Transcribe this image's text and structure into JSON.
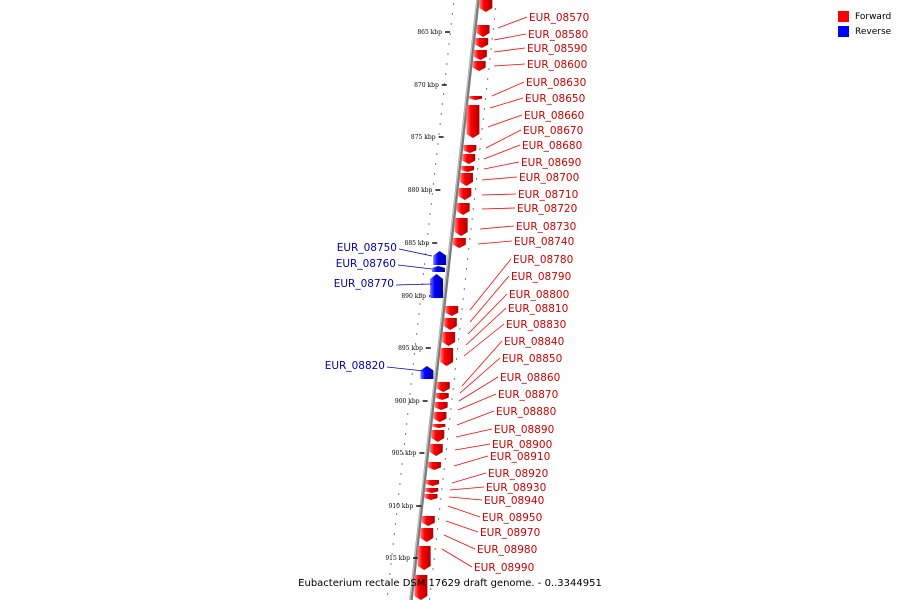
{
  "legend": {
    "forward_label": "Forward",
    "reverse_label": "Reverse",
    "forward_color": "#ff0000",
    "reverse_color": "#0000ff"
  },
  "caption": "Eubacterium rectale DSM 17629 draft genome. - 0..3344951",
  "ticks": [
    "865 kbp",
    "870 kbp",
    "875 kbp",
    "880 kbp",
    "885 kbp",
    "890 kbp",
    "895 kbp",
    "900 kbp",
    "905 kbp",
    "910 kbp",
    "915 kbp"
  ],
  "forward_genes": [
    "EUR_08570",
    "EUR_08580",
    "EUR_08590",
    "EUR_08600",
    "EUR_08630",
    "EUR_08650",
    "EUR_08660",
    "EUR_08670",
    "EUR_08680",
    "EUR_08690",
    "EUR_08700",
    "EUR_08710",
    "EUR_08720",
    "EUR_08730",
    "EUR_08740",
    "EUR_08780",
    "EUR_08790",
    "EUR_08800",
    "EUR_08810",
    "EUR_08830",
    "EUR_08840",
    "EUR_08850",
    "EUR_08860",
    "EUR_08870",
    "EUR_08880",
    "EUR_08890",
    "EUR_08900",
    "EUR_08910",
    "EUR_08920",
    "EUR_08930",
    "EUR_08940",
    "EUR_08950",
    "EUR_08970",
    "EUR_08980",
    "EUR_08990"
  ],
  "reverse_genes": [
    "EUR_08750",
    "EUR_08760",
    "EUR_08770",
    "EUR_08820"
  ]
}
